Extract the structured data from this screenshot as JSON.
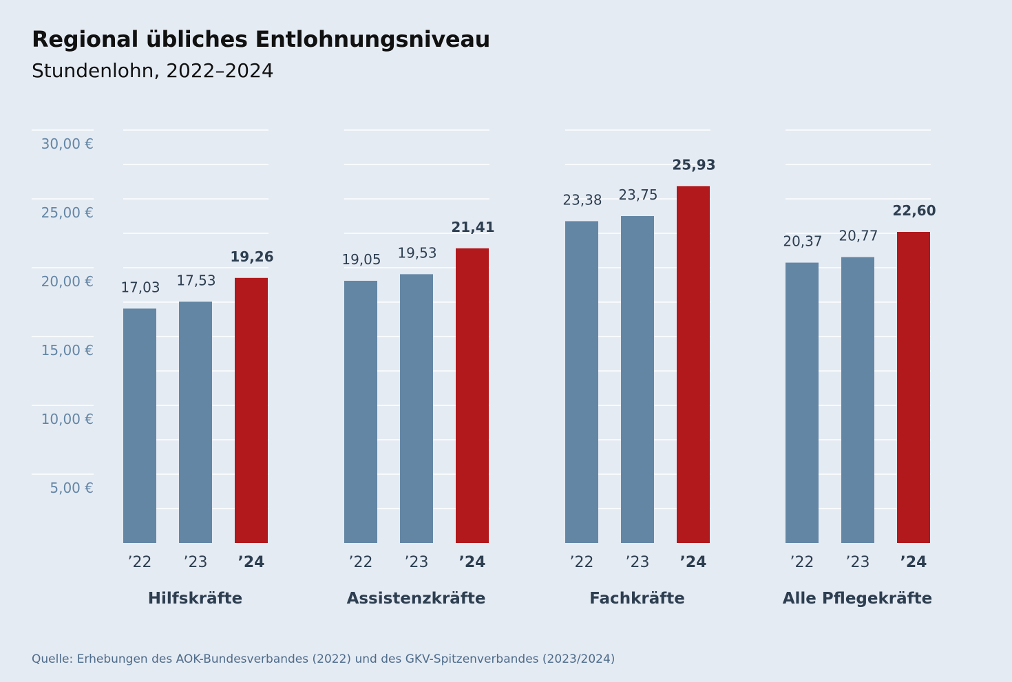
{
  "title": "Regional übliches Entlohnungsniveau",
  "subtitle": "Stundenlohn, 2022–2024",
  "source": "Quelle: Erhebungen des AOK-Bundesverbandes (2022) und des GKV-Spitzenverbandes (2023/2024)",
  "colors": {
    "background": "#e5ebf3",
    "bar_past": "#6386a5",
    "bar_current": "#b2191c",
    "gridline": "#ffffff",
    "axis_text": "#6386a5",
    "label_text": "#2d3e50"
  },
  "chart_data": {
    "type": "bar",
    "ylim": [
      0,
      30
    ],
    "yticks": [
      {
        "value": 5,
        "label": "5,00 €"
      },
      {
        "value": 10,
        "label": "10,00 €"
      },
      {
        "value": 15,
        "label": "15,00 €"
      },
      {
        "value": 20,
        "label": "20,00 €"
      },
      {
        "value": 25,
        "label": "25,00 €"
      },
      {
        "value": 30,
        "label": "30,00 €"
      }
    ],
    "grid": true,
    "groups": [
      {
        "name": "Hilfskräfte",
        "bars": [
          {
            "year": "’22",
            "value": 17.03,
            "label": "17,03",
            "highlight": false
          },
          {
            "year": "’23",
            "value": 17.53,
            "label": "17,53",
            "highlight": false
          },
          {
            "year": "’24",
            "value": 19.26,
            "label": "19,26",
            "highlight": true
          }
        ]
      },
      {
        "name": "Assistenzkräfte",
        "bars": [
          {
            "year": "’22",
            "value": 19.05,
            "label": "19,05",
            "highlight": false
          },
          {
            "year": "’23",
            "value": 19.53,
            "label": "19,53",
            "highlight": false
          },
          {
            "year": "’24",
            "value": 21.41,
            "label": "21,41",
            "highlight": true
          }
        ]
      },
      {
        "name": "Fachkräfte",
        "bars": [
          {
            "year": "’22",
            "value": 23.38,
            "label": "23,38",
            "highlight": false
          },
          {
            "year": "’23",
            "value": 23.75,
            "label": "23,75",
            "highlight": false
          },
          {
            "year": "’24",
            "value": 25.93,
            "label": "25,93",
            "highlight": true
          }
        ]
      },
      {
        "name": "Alle Pflegekräfte",
        "bars": [
          {
            "year": "’22",
            "value": 20.37,
            "label": "20,37",
            "highlight": false
          },
          {
            "year": "’23",
            "value": 20.77,
            "label": "20,77",
            "highlight": false
          },
          {
            "year": "’24",
            "value": 22.6,
            "label": "22,60",
            "highlight": true
          }
        ]
      }
    ]
  }
}
